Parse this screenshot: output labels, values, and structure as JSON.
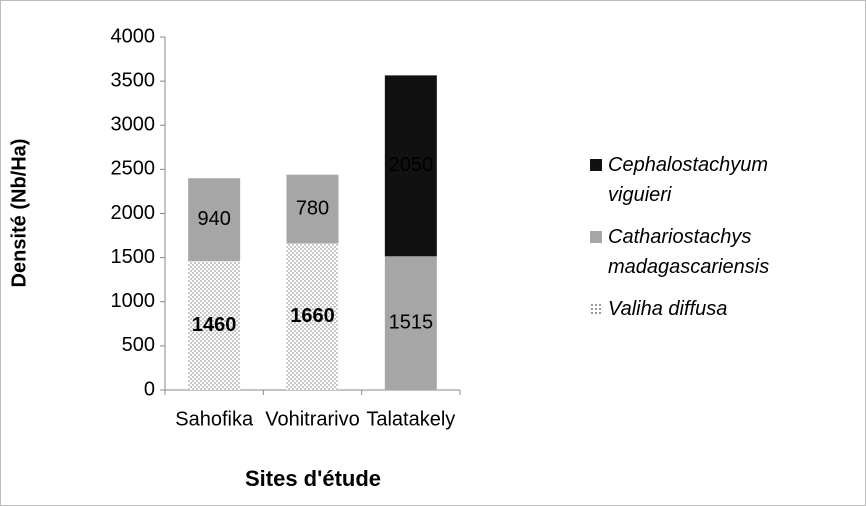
{
  "chart_data": {
    "type": "bar",
    "stacked": true,
    "y_label": "Densité (Nb/Ha)",
    "x_label": "Sites d'étude",
    "categories": [
      "Sahofika",
      "Vohitrarivo",
      "Talatakely"
    ],
    "series": [
      {
        "name": "Valiha diffusa",
        "color": "#ffffff",
        "pattern": "dots",
        "label_bold": true,
        "values": [
          1460,
          1660,
          null
        ]
      },
      {
        "name": "Cathariostachys madagascariensis",
        "color": "#a6a6a6",
        "values": [
          940,
          780,
          1515
        ]
      },
      {
        "name": "Cephalostachyum viguieri",
        "color": "#111111",
        "label_color": "#ffffff",
        "values": [
          null,
          null,
          2050
        ]
      }
    ],
    "ylim": [
      0,
      4000
    ],
    "yticks": [
      0,
      500,
      1000,
      1500,
      2000,
      2500,
      3000,
      3500,
      4000
    ]
  }
}
